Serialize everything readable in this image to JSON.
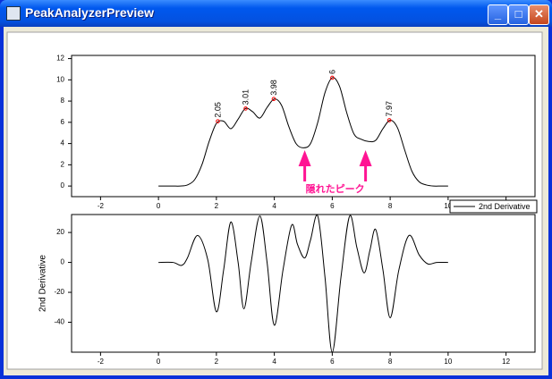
{
  "window": {
    "title": "PeakAnalyzerPreview"
  },
  "chart_data": [
    {
      "type": "line",
      "x": [
        0,
        0.25,
        0.5,
        0.75,
        1,
        1.25,
        1.5,
        1.75,
        2,
        2.25,
        2.5,
        2.75,
        3,
        3.25,
        3.5,
        3.75,
        4,
        4.25,
        4.5,
        4.75,
        5,
        5.25,
        5.5,
        5.75,
        6,
        6.25,
        6.5,
        6.75,
        7,
        7.25,
        7.5,
        7.75,
        8,
        8.25,
        8.5,
        8.75,
        9,
        9.25,
        9.5,
        9.75,
        10
      ],
      "series": [
        {
          "color": "#000000",
          "values": [
            0,
            0,
            0,
            0,
            0.1,
            0.6,
            2.0,
            4.2,
            5.9,
            6.1,
            5.4,
            6.3,
            7.3,
            7.0,
            6.4,
            7.4,
            8.2,
            7.6,
            5.6,
            4.0,
            3.6,
            4.0,
            6.0,
            8.8,
            10.2,
            9.4,
            6.9,
            4.9,
            4.4,
            4.2,
            4.3,
            5.4,
            6.2,
            5.5,
            3.4,
            1.4,
            0.4,
            0.1,
            0,
            0,
            0
          ]
        }
      ],
      "peaks": {
        "x": [
          2.05,
          3.01,
          3.98,
          6,
          7.97
        ],
        "y": [
          6.1,
          7.3,
          8.2,
          10.2,
          6.2
        ],
        "color": "#ff0000"
      },
      "annotation": {
        "text": "隠れたピーク",
        "color": "#ff1493",
        "arrows_x": [
          5.05,
          7.15
        ]
      },
      "xlim": [
        -3,
        13
      ],
      "xticks": [
        -2,
        0,
        2,
        4,
        6,
        8,
        10,
        12
      ],
      "ylim": [
        -1,
        12.3
      ],
      "yticks": [
        0,
        2,
        4,
        6,
        8,
        10,
        12
      ]
    },
    {
      "type": "line",
      "ylabel": "2nd Derivative",
      "x": [
        0,
        0.5,
        0.8,
        1.0,
        1.35,
        1.7,
        2.0,
        2.25,
        2.5,
        2.75,
        2.95,
        3.2,
        3.5,
        3.75,
        4.0,
        4.3,
        4.6,
        4.8,
        5.05,
        5.25,
        5.5,
        5.75,
        6.0,
        6.3,
        6.6,
        6.85,
        7.1,
        7.3,
        7.5,
        7.75,
        8.0,
        8.3,
        8.65,
        9.0,
        9.3,
        9.6,
        10
      ],
      "series": [
        {
          "name": "2nd Derivative",
          "color": "#000000",
          "values": [
            0,
            0,
            -2,
            3,
            18,
            2,
            -33,
            -5,
            27,
            0,
            -31,
            0,
            31,
            0,
            -42,
            -5,
            25,
            12,
            3,
            15,
            31,
            -10,
            -60,
            -10,
            31,
            10,
            -7,
            8,
            22,
            -5,
            -37,
            -5,
            18,
            5,
            -1,
            0,
            0
          ]
        }
      ],
      "legend": "above-right",
      "xlim": [
        -3,
        13
      ],
      "xticks": [
        -2,
        0,
        2,
        4,
        6,
        8,
        10,
        12
      ],
      "ylim": [
        -60,
        32
      ],
      "yticks": [
        20,
        0,
        -20,
        -40
      ]
    }
  ]
}
